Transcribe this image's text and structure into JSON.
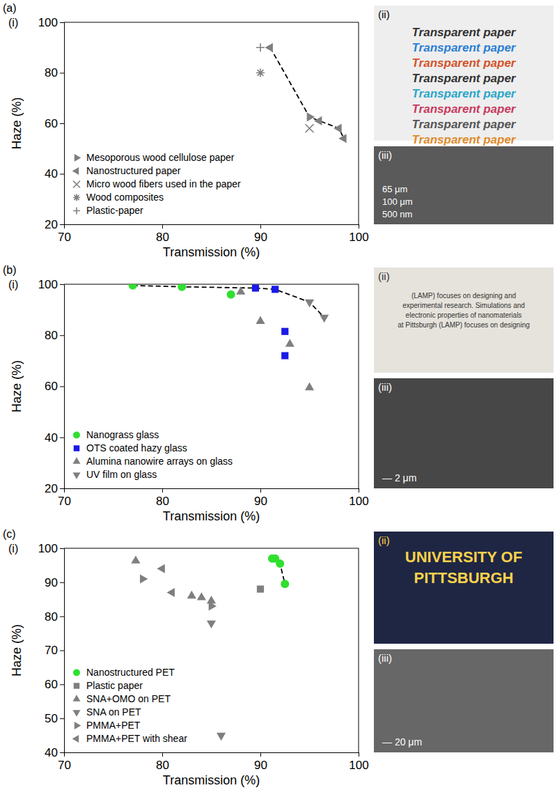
{
  "chart_data": [
    {
      "type": "scatter",
      "panel": "(a)",
      "subpanel": "(i)",
      "x_label": "Transmission (%)",
      "y_label": "Haze (%)",
      "xlim": [
        70,
        100
      ],
      "xticks": [
        70,
        80,
        90,
        100
      ],
      "ylim": [
        20,
        100
      ],
      "yticks": [
        20,
        40,
        60,
        80,
        100
      ],
      "grid": false,
      "legend": "lower left",
      "series": [
        {
          "name": "Mesoporous wood cellulose paper",
          "color": "#7f7f7f",
          "marker": "triangle-right",
          "x": [
            95
          ],
          "values": [
            62.5
          ]
        },
        {
          "name": "Nanostructured paper",
          "color": "#7f7f7f",
          "marker": "triangle-left",
          "x": [
            91,
            96,
            98,
            98.5
          ],
          "values": [
            90,
            61,
            58,
            54
          ]
        },
        {
          "name": "Micro wood fibers used in the paper",
          "color": "#7f7f7f",
          "marker": "x",
          "x": [
            95
          ],
          "values": [
            58
          ]
        },
        {
          "name": "Wood composites",
          "color": "#7f7f7f",
          "marker": "asterisk",
          "x": [
            90
          ],
          "values": [
            80
          ]
        },
        {
          "name": "Plastic-paper",
          "color": "#7f7f7f",
          "marker": "plus",
          "x": [
            90
          ],
          "values": [
            90
          ]
        },
        {
          "type": "line",
          "line_style": "dashed",
          "color": "#000000",
          "x": [
            91,
            95,
            96,
            98,
            98.5
          ],
          "values": [
            90,
            62.5,
            61,
            58,
            54
          ]
        }
      ]
    },
    {
      "type": "scatter",
      "panel": "(b)",
      "subpanel": "(i)",
      "x_label": "Transmission (%)",
      "y_label": "Haze (%)",
      "xlim": [
        70,
        100
      ],
      "xticks": [
        70,
        80,
        90,
        100
      ],
      "ylim": [
        20,
        100
      ],
      "yticks": [
        20,
        40,
        60,
        80,
        100
      ],
      "grid": false,
      "legend": "lower left",
      "series": [
        {
          "name": "Nanograss glass",
          "color": "#2fe02f",
          "marker": "circle",
          "x": [
            77,
            82,
            87
          ],
          "values": [
            99.5,
            99,
            96
          ]
        },
        {
          "name": "OTS coated hazy glass",
          "color": "#1a1ae6",
          "marker": "square",
          "x": [
            89.5,
            91.5,
            92.5,
            92.5
          ],
          "values": [
            98.5,
            98,
            81.5,
            72
          ]
        },
        {
          "name": "Alumina nanowire arrays on glass",
          "color": "#7f7f7f",
          "marker": "triangle-up",
          "x": [
            88,
            90,
            93,
            95
          ],
          "values": [
            97,
            85.5,
            76.5,
            59.5
          ]
        },
        {
          "name": "UV film on glass",
          "color": "#7f7f7f",
          "marker": "triangle-down",
          "x": [
            95,
            96.5
          ],
          "values": [
            93,
            87
          ]
        },
        {
          "type": "line",
          "line_style": "dashed",
          "color": "#000000",
          "x": [
            77,
            82,
            89.5,
            91.5,
            95,
            96.5
          ],
          "values": [
            99.5,
            99,
            98.5,
            98,
            93,
            87
          ]
        }
      ]
    },
    {
      "type": "scatter",
      "panel": "(c)",
      "subpanel": "(i)",
      "x_label": "Transmission (%)",
      "y_label": "Haze (%)",
      "xlim": [
        70,
        100
      ],
      "xticks": [
        70,
        80,
        90,
        100
      ],
      "ylim": [
        40,
        100
      ],
      "yticks": [
        40,
        50,
        60,
        70,
        80,
        90,
        100
      ],
      "grid": false,
      "legend": "lower left",
      "series": [
        {
          "name": "Nanostructured PET",
          "color": "#2fe02f",
          "marker": "circle",
          "x": [
            91.2,
            91.5,
            92,
            92.5
          ],
          "values": [
            97,
            97,
            95.5,
            89.5
          ]
        },
        {
          "name": "Plastic paper",
          "color": "#7f7f7f",
          "marker": "square",
          "x": [
            90
          ],
          "values": [
            88
          ]
        },
        {
          "name": "SNA+OMO on PET",
          "color": "#7f7f7f",
          "marker": "triangle-up",
          "x": [
            77.3,
            83,
            84,
            85
          ],
          "values": [
            96.3,
            86,
            85.5,
            84.5
          ]
        },
        {
          "name": "SNA on PET",
          "color": "#7f7f7f",
          "marker": "triangle-down",
          "x": [
            85,
            86
          ],
          "values": [
            78,
            45
          ]
        },
        {
          "name": "PMMA+PET",
          "color": "#7f7f7f",
          "marker": "triangle-right",
          "x": [
            78,
            85
          ],
          "values": [
            91,
            83
          ]
        },
        {
          "name": "PMMA+PET with shear",
          "color": "#7f7f7f",
          "marker": "triangle-left",
          "x": [
            80,
            81
          ],
          "values": [
            94,
            87
          ]
        },
        {
          "type": "line",
          "line_style": "dashed",
          "color": "#000000",
          "x": [
            91.2,
            91.5,
            92,
            92.5
          ],
          "values": [
            97,
            97,
            95.5,
            89.5
          ]
        }
      ]
    }
  ],
  "photos": [
    [
      {
        "label": "(ii)",
        "texts": [
          "Transparent paper",
          "Transparent paper",
          "Transparent paper",
          "Transparent paper",
          "Transparent paper",
          "Transparent paper",
          "Transparent paper",
          "Transparent paper"
        ]
      },
      {
        "label": "(iii)",
        "texts": [
          "65 μm",
          "100 μm",
          "500 nm"
        ]
      }
    ],
    [
      {
        "label": "(ii)",
        "texts": [
          "(LAMP) focuses on designing and",
          "experimental research. Simulations and",
          "electronic properties of nanomaterials",
          "at Pittsburgh (LAMP) focuses on designing"
        ]
      },
      {
        "label": "(iii)",
        "texts": [
          "— 2 μm"
        ]
      }
    ],
    [
      {
        "label": "(ii)",
        "texts": [
          "UNIVERSITY OF",
          "PITTSBURGH"
        ]
      },
      {
        "label": "(iii)",
        "texts": [
          "— 20 μm"
        ]
      }
    ]
  ]
}
